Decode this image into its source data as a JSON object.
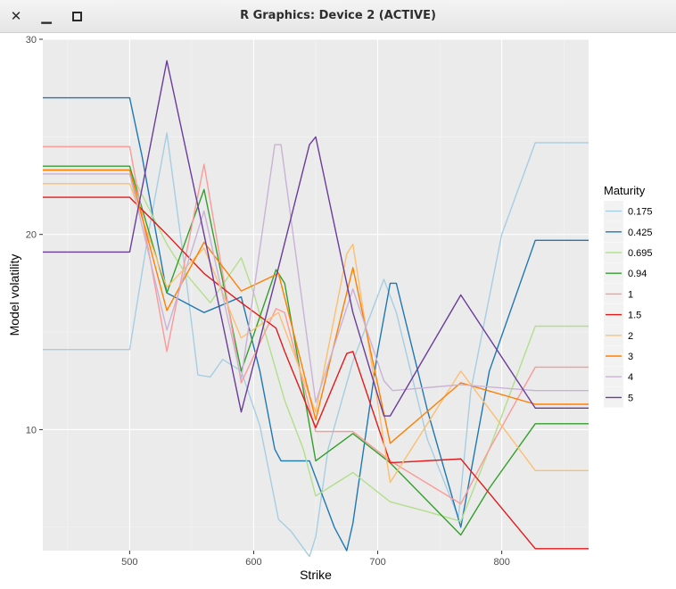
{
  "window": {
    "title": "R Graphics: Device 2 (ACTIVE)",
    "close_icon": "close-icon",
    "minimize_icon": "minimize-icon",
    "maximize_icon": "maximize-icon"
  },
  "chart_data": {
    "type": "line",
    "title": "",
    "xlabel": "Strike",
    "ylabel": "Model volatility",
    "xlim": [
      430,
      870
    ],
    "ylim": [
      3.8,
      30
    ],
    "x_ticks": [
      500,
      600,
      700,
      800
    ],
    "y_ticks": [
      10,
      20,
      30
    ],
    "grid": true,
    "legend": {
      "title": "Maturity",
      "position": "right"
    },
    "series": [
      {
        "name": "0.175",
        "color": "#a6cee3",
        "points": [
          [
            430,
            14.1
          ],
          [
            500,
            14.1
          ],
          [
            515,
            20
          ],
          [
            530,
            25.2
          ],
          [
            545,
            18
          ],
          [
            555,
            12.8
          ],
          [
            565,
            12.7
          ],
          [
            575,
            13.6
          ],
          [
            590,
            13.0
          ],
          [
            605,
            10.2
          ],
          [
            620,
            5.4
          ],
          [
            630,
            4.8
          ],
          [
            645,
            3.5
          ],
          [
            650,
            4.5
          ],
          [
            660,
            9
          ],
          [
            680,
            13.5
          ],
          [
            705,
            17.7
          ],
          [
            715,
            16
          ],
          [
            740,
            9.5
          ],
          [
            765,
            5.5
          ],
          [
            775,
            12
          ],
          [
            800,
            20
          ],
          [
            827,
            24.7
          ],
          [
            870,
            24.7
          ]
        ]
      },
      {
        "name": "0.425",
        "color": "#1f78b4",
        "points": [
          [
            430,
            27
          ],
          [
            500,
            27
          ],
          [
            510,
            24
          ],
          [
            530,
            17.0
          ],
          [
            545,
            16.5
          ],
          [
            560,
            16.0
          ],
          [
            590,
            16.8
          ],
          [
            605,
            13
          ],
          [
            617,
            9
          ],
          [
            622,
            8.4
          ],
          [
            645,
            8.4
          ],
          [
            665,
            5
          ],
          [
            675,
            3.8
          ],
          [
            680,
            5.2
          ],
          [
            700,
            14
          ],
          [
            710,
            17.5
          ],
          [
            715,
            17.5
          ],
          [
            740,
            11
          ],
          [
            767,
            5
          ],
          [
            790,
            13
          ],
          [
            827,
            19.7
          ],
          [
            870,
            19.7
          ]
        ]
      },
      {
        "name": "0.695",
        "color": "#b2df8a",
        "points": [
          [
            430,
            23.3
          ],
          [
            500,
            23.3
          ],
          [
            530,
            19.5
          ],
          [
            545,
            18
          ],
          [
            565,
            16.5
          ],
          [
            590,
            18.8
          ],
          [
            600,
            17
          ],
          [
            625,
            11.5
          ],
          [
            640,
            9
          ],
          [
            650,
            6.6
          ],
          [
            660,
            7
          ],
          [
            680,
            7.8
          ],
          [
            710,
            6.3
          ],
          [
            740,
            5.8
          ],
          [
            767,
            5.3
          ],
          [
            790,
            9
          ],
          [
            827,
            15.3
          ],
          [
            870,
            15.3
          ]
        ]
      },
      {
        "name": "0.94",
        "color": "#33a02c",
        "points": [
          [
            430,
            23.5
          ],
          [
            500,
            23.5
          ],
          [
            530,
            17.0
          ],
          [
            560,
            22.3
          ],
          [
            590,
            13.0
          ],
          [
            618,
            18.2
          ],
          [
            625,
            17.5
          ],
          [
            650,
            8.4
          ],
          [
            680,
            9.8
          ],
          [
            710,
            8.3
          ],
          [
            767,
            4.6
          ],
          [
            790,
            7
          ],
          [
            827,
            10.3
          ],
          [
            870,
            10.3
          ]
        ]
      },
      {
        "name": "1",
        "color": "#fb9a99",
        "points": [
          [
            430,
            24.5
          ],
          [
            500,
            24.5
          ],
          [
            530,
            14.0
          ],
          [
            560,
            23.6
          ],
          [
            590,
            12.4
          ],
          [
            618,
            16.2
          ],
          [
            625,
            16
          ],
          [
            650,
            9.9
          ],
          [
            680,
            9.9
          ],
          [
            710,
            8.4
          ],
          [
            767,
            6.2
          ],
          [
            790,
            9
          ],
          [
            827,
            13.2
          ],
          [
            870,
            13.2
          ]
        ]
      },
      {
        "name": "1.5",
        "color": "#e31a1c",
        "points": [
          [
            430,
            21.9
          ],
          [
            500,
            21.9
          ],
          [
            530,
            20
          ],
          [
            560,
            18
          ],
          [
            590,
            16.5
          ],
          [
            618,
            15.2
          ],
          [
            625,
            14
          ],
          [
            650,
            10.1
          ],
          [
            675,
            13.9
          ],
          [
            680,
            14
          ],
          [
            710,
            8.3
          ],
          [
            767,
            8.5
          ],
          [
            827,
            3.9
          ],
          [
            870,
            3.9
          ]
        ]
      },
      {
        "name": "2",
        "color": "#fdbf6f",
        "points": [
          [
            430,
            22.6
          ],
          [
            500,
            22.6
          ],
          [
            530,
            17.3
          ],
          [
            560,
            19.3
          ],
          [
            590,
            14.7
          ],
          [
            620,
            16
          ],
          [
            650,
            10.9
          ],
          [
            675,
            19.0
          ],
          [
            680,
            19.5
          ],
          [
            710,
            7.3
          ],
          [
            767,
            13.0
          ],
          [
            827,
            7.9
          ],
          [
            870,
            7.9
          ]
        ]
      },
      {
        "name": "3",
        "color": "#ff7f00",
        "points": [
          [
            430,
            23.3
          ],
          [
            500,
            23.3
          ],
          [
            530,
            16.1
          ],
          [
            560,
            19.6
          ],
          [
            590,
            17.1
          ],
          [
            620,
            18.0
          ],
          [
            650,
            10.5
          ],
          [
            680,
            18.3
          ],
          [
            710,
            9.3
          ],
          [
            767,
            12.4
          ],
          [
            827,
            11.3
          ],
          [
            870,
            11.3
          ]
        ]
      },
      {
        "name": "4",
        "color": "#cab2d6",
        "points": [
          [
            430,
            23.1
          ],
          [
            500,
            23.1
          ],
          [
            530,
            15.1
          ],
          [
            560,
            21.2
          ],
          [
            590,
            12.6
          ],
          [
            617,
            24.6
          ],
          [
            622,
            24.6
          ],
          [
            650,
            11.4
          ],
          [
            680,
            17.2
          ],
          [
            705,
            12.5
          ],
          [
            712,
            12
          ],
          [
            767,
            12.3
          ],
          [
            827,
            12.0
          ],
          [
            870,
            12.0
          ]
        ]
      },
      {
        "name": "5",
        "color": "#6a3d9a",
        "points": [
          [
            430,
            19.1
          ],
          [
            500,
            19.1
          ],
          [
            530,
            28.9
          ],
          [
            560,
            20
          ],
          [
            590,
            10.9
          ],
          [
            618,
            17.8
          ],
          [
            645,
            24.6
          ],
          [
            650,
            25
          ],
          [
            680,
            16
          ],
          [
            705,
            10.7
          ],
          [
            710,
            10.7
          ],
          [
            767,
            16.9
          ],
          [
            827,
            11.1
          ],
          [
            870,
            11.1
          ]
        ]
      }
    ]
  }
}
